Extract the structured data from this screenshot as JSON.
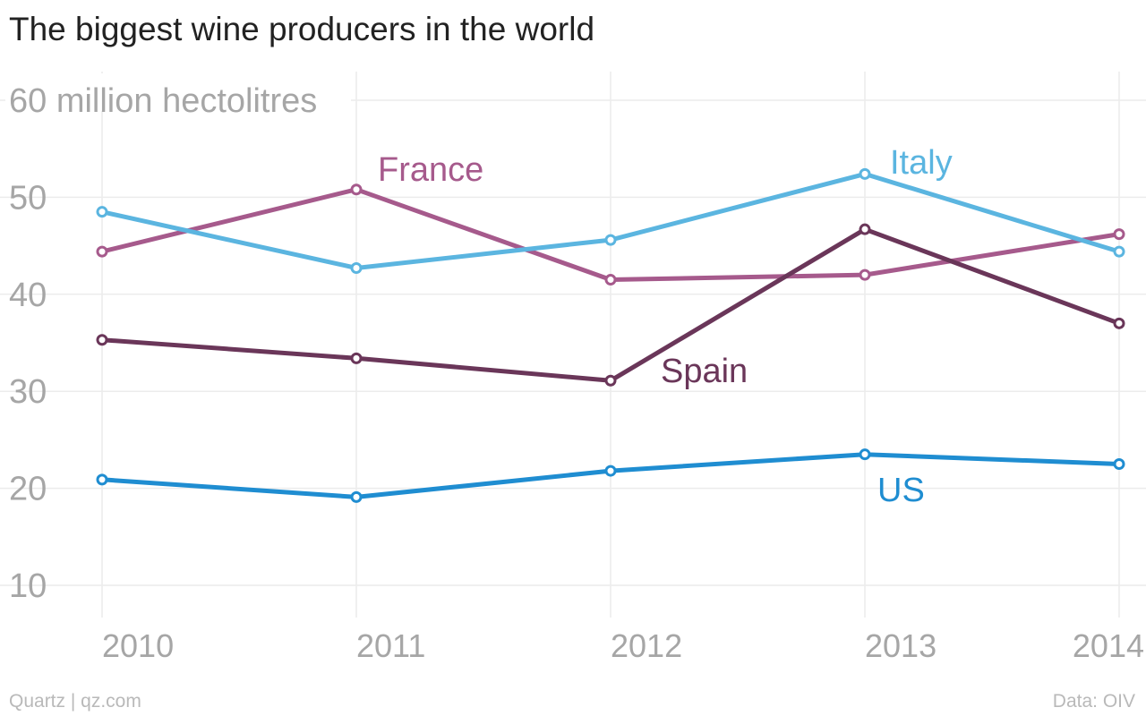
{
  "title": "The biggest wine producers in the world",
  "footer": {
    "source_left": "Quartz | qz.com",
    "source_right": "Data: OIV"
  },
  "chart_data": {
    "type": "line",
    "title": "The biggest wine producers in the world",
    "ylabel": "",
    "xlabel": "",
    "x": [
      "2010",
      "2011",
      "2012",
      "2013",
      "2014"
    ],
    "yticks": [
      "10",
      "20",
      "30",
      "40",
      "50",
      "60 million hectolitres"
    ],
    "ylim": [
      3,
      65
    ],
    "grid": true,
    "series": [
      {
        "name": "France",
        "color": "#a65a8c",
        "values": [
          44.4,
          50.8,
          41.5,
          42.0,
          46.2
        ]
      },
      {
        "name": "Italy",
        "color": "#5bb5e0",
        "values": [
          48.5,
          42.7,
          45.6,
          52.4,
          44.4
        ]
      },
      {
        "name": "Spain",
        "color": "#6a3659",
        "values": [
          35.3,
          33.4,
          31.1,
          46.7,
          37.0
        ]
      },
      {
        "name": "US",
        "color": "#1f8dd1",
        "values": [
          20.9,
          19.1,
          21.8,
          23.5,
          22.5
        ]
      }
    ]
  }
}
